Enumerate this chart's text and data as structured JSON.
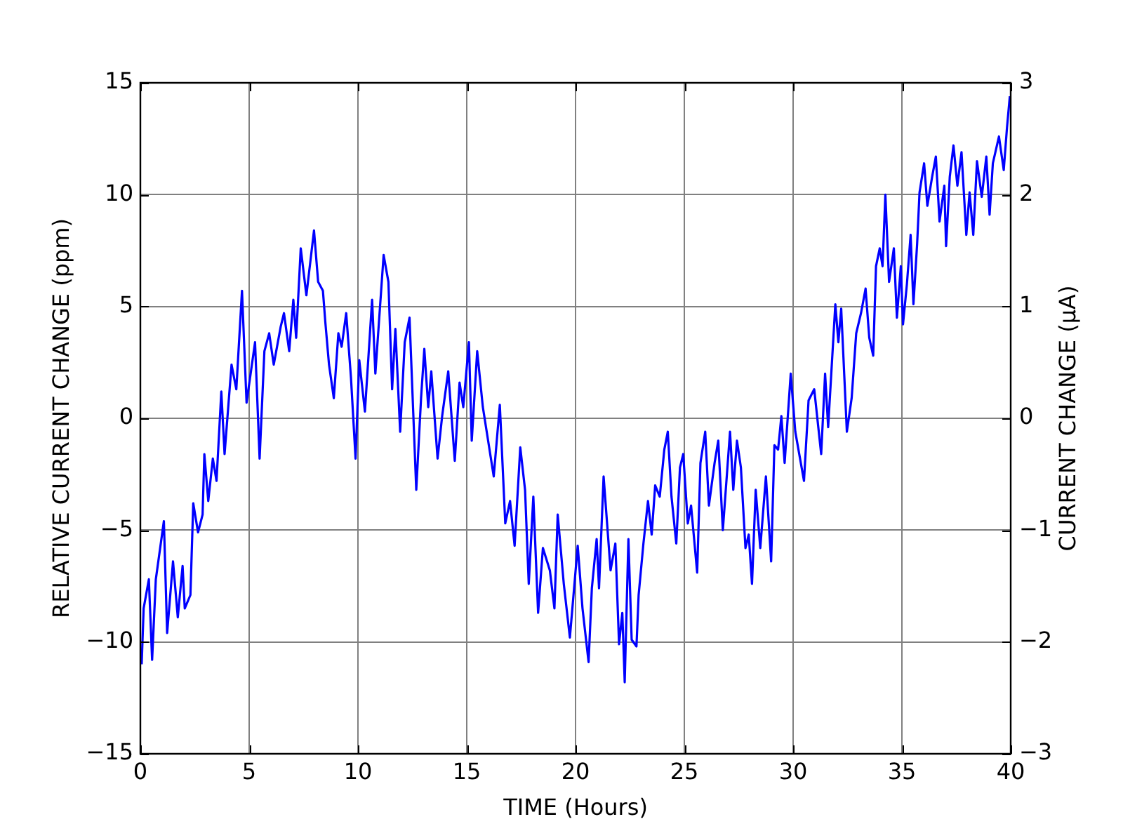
{
  "chart_data": {
    "type": "line",
    "xlabel": "TIME (Hours)",
    "ylabel": "RELATIVE CURRENT CHANGE (ppm)",
    "y2label": "CURRENT CHANGE (μA)",
    "xlim": [
      0,
      40
    ],
    "xticks": [
      0,
      5,
      10,
      15,
      20,
      25,
      30,
      35,
      40
    ],
    "ylim": [
      -15,
      15
    ],
    "yticks": [
      -15,
      -10,
      -5,
      0,
      5,
      10,
      15
    ],
    "y2lim": [
      -3,
      3
    ],
    "y2ticks": [
      -3,
      -2,
      -1,
      0,
      1,
      2,
      3
    ],
    "grid": true,
    "marker": "none",
    "color": "#0000ff",
    "x": [
      0.06,
      0.15,
      0.39,
      0.54,
      0.71,
      1.08,
      1.23,
      1.5,
      1.72,
      1.94,
      2.04,
      2.3,
      2.43,
      2.65,
      2.86,
      2.94,
      3.12,
      3.33,
      3.5,
      3.72,
      3.87,
      4.19,
      4.41,
      4.67,
      4.88,
      5.27,
      5.48,
      5.7,
      5.92,
      6.13,
      6.45,
      6.6,
      6.84,
      7.03,
      7.16,
      7.37,
      7.63,
      7.98,
      8.17,
      8.39,
      8.5,
      8.67,
      8.89,
      9.1,
      9.25,
      9.46,
      9.68,
      9.89,
      10.06,
      10.32,
      10.65,
      10.8,
      11.18,
      11.4,
      11.57,
      11.72,
      11.94,
      12.15,
      12.37,
      12.68,
      12.9,
      13.05,
      13.23,
      13.37,
      13.66,
      13.87,
      14.15,
      14.45,
      14.67,
      14.84,
      15.1,
      15.23,
      15.48,
      15.74,
      15.95,
      16.24,
      16.52,
      16.77,
      16.99,
      17.2,
      17.46,
      17.68,
      17.85,
      18.06,
      18.28,
      18.5,
      18.82,
      19.03,
      19.18,
      19.46,
      19.74,
      20.1,
      20.32,
      20.6,
      20.75,
      20.97,
      21.08,
      21.29,
      21.61,
      21.83,
      22.0,
      22.15,
      22.26,
      22.43,
      22.58,
      22.8,
      22.9,
      23.12,
      23.33,
      23.5,
      23.66,
      23.87,
      24.08,
      24.24,
      24.41,
      24.63,
      24.8,
      24.95,
      25.16,
      25.31,
      25.59,
      25.74,
      25.96,
      26.13,
      26.39,
      26.56,
      26.77,
      27.1,
      27.25,
      27.42,
      27.6,
      27.81,
      27.96,
      28.11,
      28.28,
      28.49,
      28.75,
      28.99,
      29.14,
      29.31,
      29.46,
      29.61,
      29.89,
      30.1,
      30.5,
      30.71,
      30.97,
      31.29,
      31.47,
      31.61,
      31.94,
      32.08,
      32.21,
      32.47,
      32.69,
      32.9,
      33.12,
      33.33,
      33.5,
      33.68,
      33.81,
      33.98,
      34.11,
      34.24,
      34.41,
      34.63,
      34.77,
      34.95,
      35.05,
      35.23,
      35.4,
      35.53,
      35.7,
      35.81,
      36.02,
      36.17,
      36.39,
      36.56,
      36.73,
      36.95,
      37.03,
      37.2,
      37.37,
      37.55,
      37.74,
      37.96,
      38.11,
      38.28,
      38.45,
      38.67,
      38.88,
      39.03,
      39.18,
      39.46,
      39.68,
      39.83,
      39.96
    ],
    "values": [
      -11.0,
      -8.5,
      -7.2,
      -10.8,
      -7.2,
      -4.6,
      -9.6,
      -6.4,
      -8.9,
      -6.6,
      -8.5,
      -7.9,
      -3.8,
      -5.1,
      -4.3,
      -1.6,
      -3.7,
      -1.8,
      -2.8,
      1.2,
      -1.6,
      2.4,
      1.3,
      5.7,
      0.7,
      3.4,
      -1.8,
      3.0,
      3.8,
      2.4,
      4.1,
      4.7,
      3.0,
      5.3,
      3.6,
      7.6,
      5.5,
      8.4,
      6.1,
      5.7,
      4.3,
      2.4,
      0.9,
      3.8,
      3.2,
      4.7,
      1.8,
      -1.8,
      2.6,
      0.3,
      5.3,
      2.0,
      7.3,
      6.1,
      1.3,
      4.0,
      -0.6,
      3.4,
      4.5,
      -3.2,
      0.9,
      3.1,
      0.5,
      2.1,
      -1.8,
      0.1,
      2.1,
      -1.9,
      1.6,
      0.5,
      3.4,
      -1.0,
      3.0,
      0.5,
      -0.8,
      -2.6,
      0.6,
      -4.7,
      -3.7,
      -5.7,
      -1.3,
      -3.2,
      -7.4,
      -3.5,
      -8.7,
      -5.8,
      -6.8,
      -8.5,
      -4.3,
      -7.4,
      -9.8,
      -5.7,
      -8.5,
      -10.9,
      -7.6,
      -5.4,
      -7.6,
      -2.6,
      -6.8,
      -5.6,
      -10.1,
      -8.7,
      -11.8,
      -5.4,
      -9.9,
      -10.2,
      -7.9,
      -5.6,
      -3.7,
      -5.2,
      -3.0,
      -3.5,
      -1.4,
      -0.6,
      -3.5,
      -5.6,
      -2.2,
      -1.6,
      -4.7,
      -3.9,
      -6.9,
      -2.0,
      -0.6,
      -3.9,
      -2.0,
      -1.0,
      -5.0,
      -0.6,
      -3.2,
      -1.0,
      -2.2,
      -5.8,
      -5.2,
      -7.4,
      -3.2,
      -5.8,
      -2.6,
      -6.4,
      -1.2,
      -1.4,
      0.1,
      -2.0,
      2.0,
      -0.6,
      -2.8,
      0.8,
      1.3,
      -1.6,
      2.0,
      -0.4,
      5.1,
      3.4,
      4.9,
      -0.6,
      0.9,
      3.8,
      4.7,
      5.8,
      3.6,
      2.8,
      6.8,
      7.6,
      6.8,
      10.0,
      6.1,
      7.6,
      4.5,
      6.8,
      4.2,
      6.0,
      8.2,
      5.1,
      7.8,
      10.1,
      11.4,
      9.5,
      10.8,
      11.7,
      8.8,
      10.4,
      7.7,
      10.8,
      12.2,
      10.4,
      11.9,
      8.2,
      10.1,
      8.2,
      11.5,
      9.9,
      11.7,
      9.1,
      11.4,
      12.6,
      11.1,
      13.0,
      14.4
    ]
  }
}
